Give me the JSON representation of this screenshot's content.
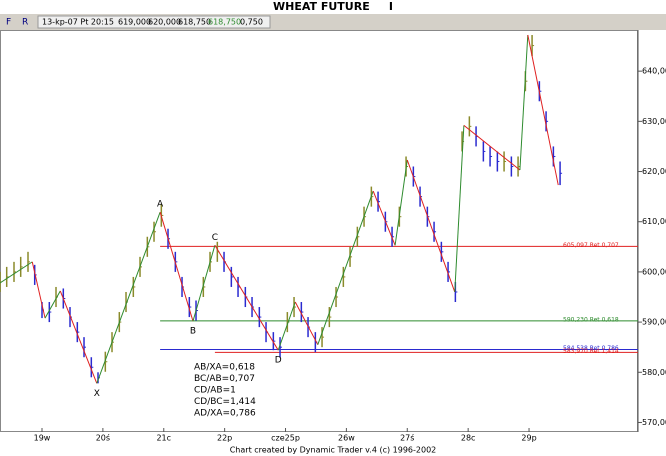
{
  "header": {
    "title": "WHEAT FUTURE     I",
    "buttons": [
      "F",
      "R"
    ],
    "quote": [
      "13-kp-07 Pt 20:15",
      "619,000",
      "620,000",
      "618,750",
      "618,750",
      "0,750"
    ]
  },
  "chart_data": {
    "type": "ohlc",
    "footer": "Chart created by Dynamic Trader v.4  (c) 1996-2002",
    "xlim": [
      -0.69,
      9.79
    ],
    "xticks": [
      {
        "value": 0,
        "label": "19w"
      },
      {
        "value": 1,
        "label": "20ś"
      },
      {
        "value": 2,
        "label": "21c"
      },
      {
        "value": 3,
        "label": "22p"
      },
      {
        "value": 4,
        "label": "cze25p"
      },
      {
        "value": 5,
        "label": "26w"
      },
      {
        "value": 6,
        "label": "27ś"
      },
      {
        "value": 7,
        "label": "28c"
      },
      {
        "value": 8,
        "label": "29p"
      }
    ],
    "ylim": [
      568.1,
      648.2
    ],
    "yticks": [
      {
        "value": 570,
        "label": "570,000"
      },
      {
        "value": 580,
        "label": "580,000"
      },
      {
        "value": 590,
        "label": "590,000"
      },
      {
        "value": 600,
        "label": "600,000"
      },
      {
        "value": 610,
        "label": "610,000"
      },
      {
        "value": 620,
        "label": "620,000"
      },
      {
        "value": 630,
        "label": "630,000"
      },
      {
        "value": 640,
        "label": "640,000"
      }
    ],
    "up_color": "#8a8a2a",
    "down_color": "#2a2ad0",
    "bars": {
      "x": [
        -0.69,
        -0.58,
        -0.46,
        -0.35,
        -0.23,
        -0.12,
        0.0,
        0.12,
        0.23,
        0.35,
        0.46,
        0.58,
        0.69,
        0.81,
        0.92,
        1.04,
        1.15,
        1.27,
        1.38,
        1.5,
        1.61,
        1.73,
        1.84,
        1.96,
        2.07,
        2.19,
        2.3,
        2.42,
        2.53,
        2.65,
        2.76,
        2.88,
        2.99,
        3.11,
        3.22,
        3.34,
        3.45,
        3.57,
        3.68,
        3.8,
        3.91,
        4.03,
        4.14,
        4.26,
        4.37,
        4.49,
        4.6,
        4.72,
        4.83,
        4.95,
        5.06,
        5.18,
        5.29,
        5.41,
        5.52,
        5.64,
        5.75,
        5.87,
        5.98,
        6.1,
        6.21,
        6.33,
        6.44,
        6.56,
        6.67,
        6.79,
        6.9,
        7.02,
        7.13,
        7.25,
        7.36,
        7.48,
        7.59,
        7.71,
        7.82,
        7.94,
        8.05,
        8.17,
        8.28,
        8.4,
        8.51
      ],
      "high": [
        600,
        601,
        602,
        603,
        604,
        601.4,
        594,
        594,
        597,
        596.7,
        593,
        590,
        587,
        583,
        580,
        584.1,
        588,
        592,
        596,
        599,
        603,
        607,
        610,
        613.5,
        608.6,
        604,
        599,
        595,
        594.3,
        599,
        604,
        606,
        604,
        601,
        599,
        597,
        595,
        593,
        590,
        588,
        587,
        592,
        595,
        594,
        591,
        588,
        589,
        593,
        597,
        601,
        605,
        609,
        613,
        617,
        616,
        612,
        609,
        613,
        623,
        621,
        617,
        613,
        610,
        606,
        602,
        598,
        628,
        631,
        629,
        626,
        625,
        624,
        624,
        623,
        623,
        640,
        647.2,
        638,
        632,
        625,
        622
      ],
      "low": [
        596,
        597,
        598,
        599,
        600,
        597.4,
        590.8,
        590,
        593,
        592.7,
        589,
        586,
        583,
        579,
        577.8,
        580.1,
        584,
        588,
        592,
        595,
        599,
        603,
        606,
        609,
        604.6,
        600,
        595,
        591,
        590.3,
        595,
        600,
        602,
        600,
        597,
        595,
        593,
        591,
        589,
        586,
        584.4,
        583,
        588,
        591,
        590,
        587,
        584,
        585,
        589,
        593,
        597,
        601,
        605,
        609,
        613,
        612,
        608,
        605,
        609,
        619,
        617,
        613,
        609,
        606,
        602,
        598,
        594,
        624,
        627,
        625,
        622,
        621,
        620,
        620,
        619,
        619,
        636,
        643,
        634,
        628,
        621,
        617.3
      ]
    },
    "swing_up_color": "#2e8b2e",
    "swing_down_color": "#e02020",
    "swings": {
      "x": [
        -0.69,
        -0.16,
        0.05,
        0.3,
        0.9,
        1.94,
        2.48,
        2.84,
        3.88,
        4.16,
        4.53,
        5.44,
        5.8,
        6.0,
        6.78,
        6.93,
        7.85,
        7.98,
        8.48
      ],
      "values": [
        597.8,
        602,
        590.8,
        596.2,
        577.8,
        611.9,
        590.2,
        605.3,
        584.4,
        594,
        585.5,
        616.1,
        605.3,
        622.3,
        596,
        629.2,
        620.3,
        647.2,
        617.3
      ],
      "labels": [
        null,
        null,
        null,
        null,
        "X",
        "A",
        "B",
        "C",
        "D",
        null,
        null,
        null,
        null,
        null,
        null,
        null,
        null,
        null,
        null
      ]
    },
    "levels": [
      {
        "value": 605.097,
        "label": "605,097 Ret 0,707",
        "color": "#e02020",
        "x_start": 1.94
      },
      {
        "value": 590.23,
        "label": "590,230 Ret 0,618",
        "color": "#2e8b2e",
        "x_start": 1.94
      },
      {
        "value": 584.538,
        "label": "584,538 Ret 0,786",
        "color": "#2a2ad0",
        "x_start": 1.94
      },
      {
        "value": 583.97,
        "label": "583,970 Ret 1,414",
        "color": "#e02020",
        "x_start": 2.84
      }
    ],
    "ratios": [
      "AB/XA=0,618",
      "BC/AB=0,707",
      "CD/AB=1",
      "CD/BC=1,414",
      "AD/XA=0,786"
    ]
  }
}
